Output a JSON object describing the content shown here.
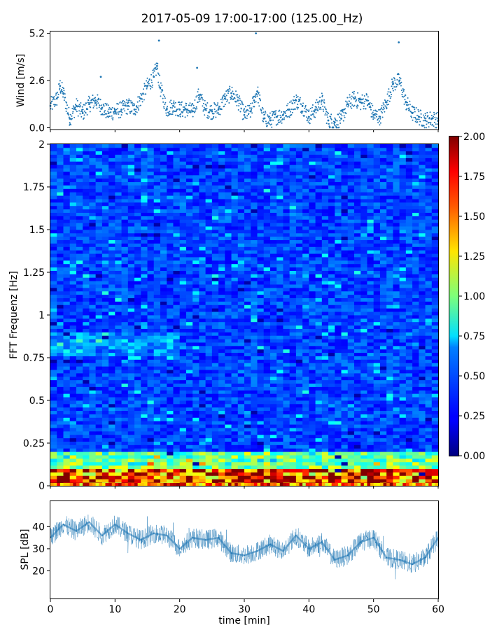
{
  "figure": {
    "title": "2017-05-09 17:00-17:00 (125.00_Hz)"
  },
  "chart_data": [
    {
      "type": "scatter",
      "panel": "wind",
      "ylabel": "Wind [m/s]",
      "xlabel": "",
      "xlim": [
        0,
        60
      ],
      "ylim": [
        -0.1,
        5.3
      ],
      "yticks": [
        0.0,
        2.6,
        5.2
      ],
      "ytick_labels": [
        "0.0",
        "2.6",
        "5.2"
      ],
      "color": "#1f77b4",
      "series": [
        {
          "x": [
            0,
            1,
            1.5,
            2,
            3,
            4,
            5,
            6,
            7,
            8,
            9,
            10,
            11,
            12,
            13,
            14,
            15,
            16,
            16.5,
            17,
            18,
            19,
            20,
            21,
            22,
            23,
            24,
            25,
            26,
            27,
            28,
            29,
            30,
            31,
            31.5,
            32,
            33,
            34,
            35,
            36,
            37,
            38,
            39,
            40,
            41,
            42,
            43,
            44,
            45,
            46,
            47,
            48,
            49,
            50,
            51,
            52,
            53,
            54,
            55,
            56,
            57,
            58,
            59,
            60
          ],
          "y": [
            1.2,
            1.6,
            2.3,
            1.9,
            0.5,
            1.2,
            0.8,
            1.3,
            1.5,
            1.1,
            0.8,
            0.9,
            1.0,
            1.2,
            1.0,
            1.6,
            2.3,
            2.8,
            3.4,
            2.2,
            1.0,
            1.2,
            1.0,
            1.0,
            0.9,
            1.8,
            1.0,
            0.9,
            1.0,
            1.6,
            1.9,
            1.5,
            0.7,
            0.9,
            1.5,
            2.0,
            0.5,
            0.4,
            0.6,
            0.7,
            1.0,
            1.5,
            1.2,
            0.6,
            1.0,
            1.5,
            0.4,
            0.3,
            0.5,
            1.3,
            1.6,
            1.4,
            1.5,
            0.7,
            0.6,
            1.4,
            2.4,
            2.6,
            1.4,
            0.8,
            0.6,
            0.4,
            0.5,
            0.4
          ]
        }
      ]
    },
    {
      "type": "heatmap",
      "panel": "spectrogram",
      "ylabel": "FFT Frequenz [Hz]",
      "xlim": [
        0,
        60
      ],
      "ylim": [
        0,
        2
      ],
      "yticks": [
        0,
        0.25,
        0.5,
        0.75,
        1,
        1.25,
        1.5,
        1.75,
        2
      ],
      "ytick_labels": [
        "0",
        "0.25",
        "0.5",
        "0.75",
        "1",
        "1.25",
        "1.5",
        "1.75",
        "2"
      ],
      "colormap": "jet",
      "colorbar": {
        "vmin": 0.0,
        "vmax": 2.0,
        "ticks": [
          "0.00",
          "0.25",
          "0.50",
          "0.75",
          "1.00",
          "1.25",
          "1.50",
          "1.75",
          "2.00"
        ]
      }
    },
    {
      "type": "line",
      "panel": "spl",
      "ylabel": "SPL [dB]",
      "xlabel": "time [min]",
      "xlim": [
        0,
        60
      ],
      "ylim": [
        7.5,
        51.5
      ],
      "xticks": [
        0,
        10,
        20,
        30,
        40,
        50,
        60
      ],
      "xtick_labels": [
        "0",
        "10",
        "20",
        "30",
        "40",
        "50",
        "60"
      ],
      "yticks": [
        20,
        30,
        40
      ],
      "ytick_labels": [
        "20",
        "30",
        "40"
      ],
      "color": "#1f77b4",
      "series": [
        {
          "x": [
            0,
            2,
            4,
            6,
            8,
            10,
            12,
            14,
            16,
            18,
            20,
            22,
            24,
            26,
            28,
            30,
            32,
            34,
            36,
            38,
            40,
            42,
            44,
            46,
            48,
            50,
            52,
            54,
            56,
            58,
            60
          ],
          "y": [
            35,
            41,
            38,
            42,
            36,
            41,
            37,
            34,
            37,
            36,
            30,
            35,
            34,
            35,
            28,
            27,
            29,
            32,
            29,
            36,
            30,
            33,
            25,
            27,
            33,
            35,
            26,
            25,
            23,
            26,
            35
          ]
        }
      ]
    }
  ]
}
